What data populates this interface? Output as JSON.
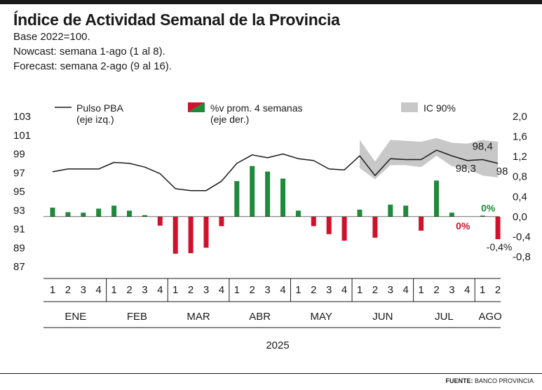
{
  "title": "Índice de Actividad Semanal de la Provincia",
  "subtitle_lines": [
    "Base 2022=100.",
    "Nowcast: semana 1-ago (1 al 8).",
    "Forecast: semana 2-ago (9 al 16)."
  ],
  "source_label": "FUENTE:",
  "source_text": "BANCO PROVINCIA",
  "colors": {
    "line": "#1a1a1a",
    "bar_pos": "#1e8a3a",
    "bar_neg": "#d0112b",
    "band": "#c8c8c8"
  },
  "chart_data": {
    "type": "line+bar",
    "legend": [
      {
        "key": "line",
        "label": "Pulso PBA",
        "label2": "(eje izq.)"
      },
      {
        "key": "bars",
        "label": "%v prom. 4 semanas",
        "label2": "(eje der.)"
      },
      {
        "key": "band",
        "label": "IC 90%"
      }
    ],
    "left_axis": {
      "ticks": [
        "103",
        "101",
        "99",
        "97",
        "95",
        "93",
        "91",
        "89",
        "87"
      ],
      "ylim": [
        87,
        103
      ]
    },
    "right_axis": {
      "ticks": [
        "2,0",
        "1,6",
        "1,2",
        "0,8",
        "0,4",
        "0,0",
        "-0,4",
        "-0,8"
      ],
      "ylim": [
        -0.8,
        2.0
      ]
    },
    "weeks": [
      "1",
      "2",
      "3",
      "4",
      "1",
      "2",
      "3",
      "4",
      "1",
      "2",
      "3",
      "4",
      "1",
      "2",
      "3",
      "4",
      "1",
      "2",
      "3",
      "4",
      "1",
      "2",
      "3",
      "4",
      "1",
      "2",
      "3",
      "4",
      "1",
      "2"
    ],
    "months": [
      "ENE",
      "FEB",
      "MAR",
      "ABR",
      "MAY",
      "JUN",
      "JUL",
      "AGO"
    ],
    "year": "2025",
    "series": [
      {
        "name": "Pulso PBA",
        "axis": "left",
        "values": [
          97.1,
          97.4,
          97.4,
          97.4,
          98.1,
          98.0,
          97.6,
          96.9,
          95.3,
          95.1,
          95.1,
          96.1,
          98.0,
          98.9,
          98.6,
          99.0,
          98.5,
          98.3,
          97.4,
          97.3,
          98.8,
          96.7,
          98.5,
          98.4,
          98.4,
          99.4,
          98.8,
          98.3,
          98.4,
          98.0
        ]
      },
      {
        "name": "%v prom. 4 semanas",
        "axis": "right",
        "values": [
          0.18,
          0.09,
          0.08,
          0.16,
          0.22,
          0.12,
          0.03,
          -0.18,
          -0.74,
          -0.73,
          -0.62,
          -0.19,
          0.71,
          1.01,
          0.9,
          0.76,
          0.12,
          -0.19,
          -0.35,
          -0.48,
          0.14,
          -0.42,
          0.24,
          0.22,
          -0.28,
          0.72,
          0.08,
          0.0,
          0.02,
          -0.45
        ]
      },
      {
        "name": "IC 90%",
        "axis": "left",
        "values": [
          null,
          null,
          null,
          null,
          null,
          null,
          null,
          null,
          null,
          null,
          null,
          null,
          null,
          null,
          null,
          null,
          null,
          null,
          null,
          null,
          [
            97.5,
            100.5
          ],
          [
            96.3,
            98.2
          ],
          [
            97.8,
            100.5
          ],
          [
            97.8,
            100.4
          ],
          [
            97.6,
            100.3
          ],
          [
            98.8,
            100.7
          ],
          [
            97.7,
            100.2
          ],
          [
            97.4,
            100.1
          ],
          [
            96.7,
            100.5
          ],
          [
            96.5,
            100.3
          ]
        ]
      }
    ],
    "annotations": [
      {
        "text": "98,4",
        "target": "line",
        "index": 28
      },
      {
        "text": "98,3",
        "target": "line",
        "index": 27
      },
      {
        "text": "98",
        "target": "line",
        "index": 29
      },
      {
        "text": "0%",
        "target": "bars",
        "index": 27,
        "color": "bar_neg"
      },
      {
        "text": "0%",
        "target": "bars",
        "index": 28,
        "color": "bar_pos"
      },
      {
        "text": "-0,4%",
        "target": "bars",
        "index": 29,
        "color": "text"
      }
    ]
  }
}
